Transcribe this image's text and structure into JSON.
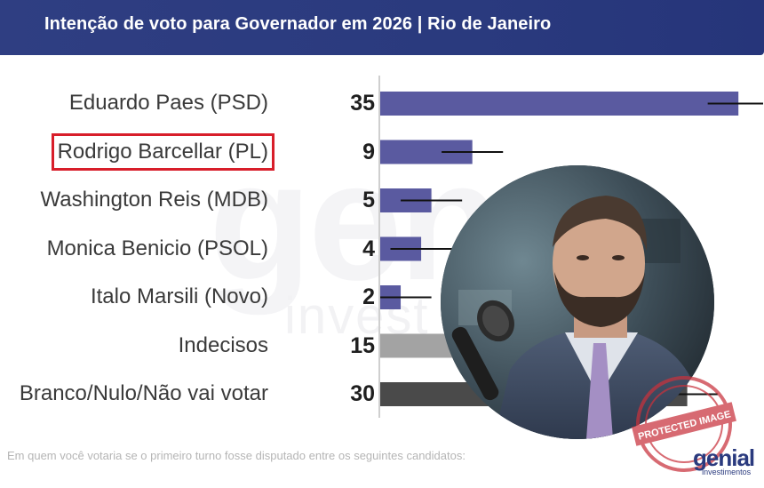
{
  "header": {
    "title": "Intenção de voto para Governador em 2026 | Rio de Janeiro"
  },
  "chart_data": {
    "type": "bar",
    "orientation": "horizontal",
    "title": "Intenção de voto para Governador em 2026 | Rio de Janeiro",
    "categories": [
      "Eduardo Paes (PSD)",
      "Rodrigo Barcellar (PL)",
      "Washington Reis (MDB)",
      "Monica Benicio (PSOL)",
      "Italo Marsili (Novo)",
      "Indecisos",
      "Branco/Nulo/Não vai votar"
    ],
    "values": [
      35,
      9,
      5,
      4,
      2,
      15,
      30
    ],
    "error_margin": 3,
    "bar_colors": [
      "#5a5aa0",
      "#5a5aa0",
      "#5a5aa0",
      "#5a5aa0",
      "#5a5aa0",
      "#a3a3a3",
      "#4a4a4a"
    ],
    "highlighted_category": "Rodrigo Barcellar (PL)",
    "highlight_color": "#d81e2a",
    "xlim": [
      0,
      37.5
    ],
    "note": "Em quem você votaria se o primeiro turno fosse disputado entre os seguintes candidatos:"
  },
  "watermark": {
    "text": "genial",
    "subtext": "investimentos"
  },
  "brand": {
    "name": "genial",
    "sub": "investimentos"
  },
  "stamp": {
    "text": "PROTECTED IMAGE",
    "color": "#c8323c"
  },
  "colors": {
    "header_bg": "#2a3a7e",
    "accent": "#5a5aa0"
  }
}
